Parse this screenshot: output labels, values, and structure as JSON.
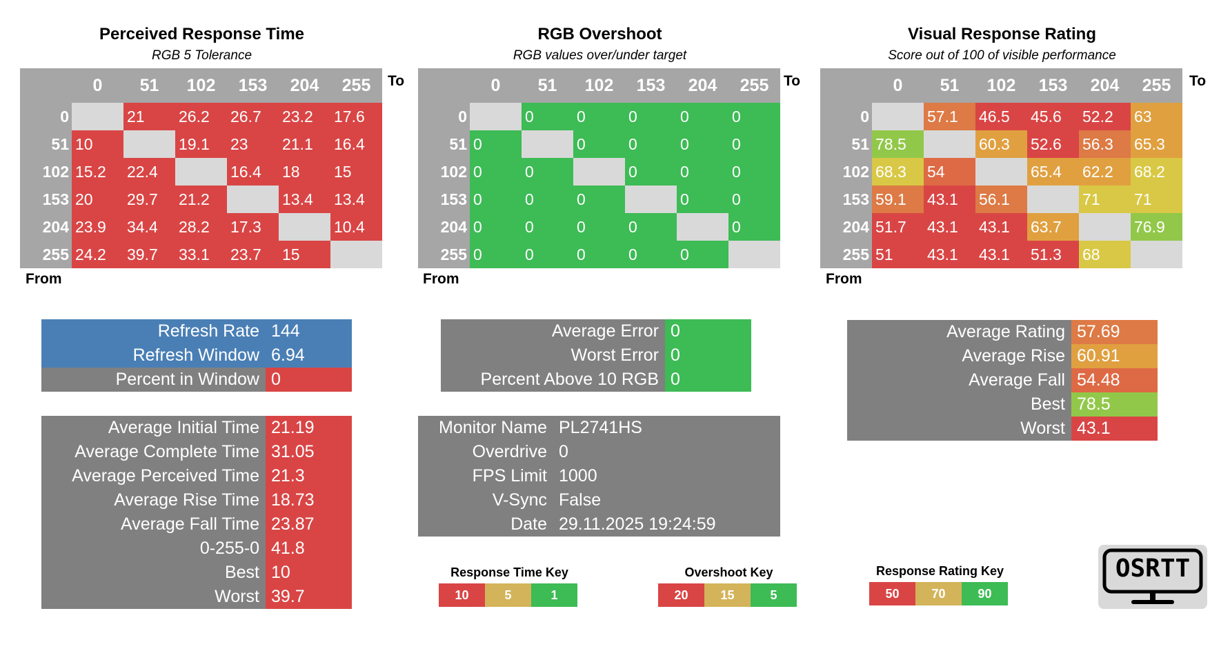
{
  "colors": {
    "red": "#d94545",
    "orange": "#dd7a45",
    "amber": "#e0a040",
    "yellow": "#d8c845",
    "yellowgreen": "#c7d24a",
    "lightgreen": "#92c84a",
    "green": "#3dbb55",
    "gray": "#808080",
    "blue": "#4a7fb5",
    "diag": "#d9d9d9"
  },
  "headers": [
    "0",
    "51",
    "102",
    "153",
    "204",
    "255"
  ],
  "to_label": "To",
  "from_label": "From",
  "prt": {
    "title": "Perceived Response Time",
    "subtitle": "RGB 5 Tolerance",
    "rows": [
      [
        "",
        "21",
        "26.2",
        "26.7",
        "23.2",
        "17.6"
      ],
      [
        "10",
        "",
        "19.1",
        "23",
        "21.1",
        "16.4"
      ],
      [
        "15.2",
        "22.4",
        "",
        "16.4",
        "18",
        "15"
      ],
      [
        "20",
        "29.7",
        "21.2",
        "",
        "13.4",
        "13.4"
      ],
      [
        "23.9",
        "34.4",
        "28.2",
        "17.3",
        "",
        "10.4"
      ],
      [
        "24.2",
        "39.7",
        "33.1",
        "23.7",
        "15",
        ""
      ]
    ]
  },
  "overshoot": {
    "title": "RGB Overshoot",
    "subtitle": "RGB values over/under target",
    "rows": [
      [
        "",
        "0",
        "0",
        "0",
        "0",
        "0"
      ],
      [
        "0",
        "",
        "0",
        "0",
        "0",
        "0"
      ],
      [
        "0",
        "0",
        "",
        "0",
        "0",
        "0"
      ],
      [
        "0",
        "0",
        "0",
        "",
        "0",
        "0"
      ],
      [
        "0",
        "0",
        "0",
        "0",
        "",
        "0"
      ],
      [
        "0",
        "0",
        "0",
        "0",
        "0",
        ""
      ]
    ]
  },
  "vrr": {
    "title": "Visual Response Rating",
    "subtitle": "Score out of 100 of visible performance",
    "rows": [
      [
        "",
        "57.1",
        "46.5",
        "45.6",
        "52.2",
        "63"
      ],
      [
        "78.5",
        "",
        "60.3",
        "52.6",
        "56.3",
        "65.3"
      ],
      [
        "68.3",
        "54",
        "",
        "65.4",
        "62.2",
        "68.2"
      ],
      [
        "59.1",
        "43.1",
        "56.1",
        "",
        "71",
        "71"
      ],
      [
        "51.7",
        "43.1",
        "43.1",
        "63.7",
        "",
        "76.9"
      ],
      [
        "51",
        "43.1",
        "43.1",
        "51.3",
        "68",
        ""
      ]
    ]
  },
  "refresh": [
    {
      "label": "Refresh Rate",
      "value": "144"
    },
    {
      "label": "Refresh Window",
      "value": "6.94"
    },
    {
      "label": "Percent in Window",
      "value": "0"
    }
  ],
  "times": [
    {
      "label": "Average Initial Time",
      "value": "21.19"
    },
    {
      "label": "Average Complete Time",
      "value": "31.05"
    },
    {
      "label": "Average Perceived Time",
      "value": "21.3"
    },
    {
      "label": "Average Rise Time",
      "value": "18.73"
    },
    {
      "label": "Average Fall Time",
      "value": "23.87"
    },
    {
      "label": "0-255-0",
      "value": "41.8"
    },
    {
      "label": "Best",
      "value": "10"
    },
    {
      "label": "Worst",
      "value": "39.7"
    }
  ],
  "errors": [
    {
      "label": "Average Error",
      "value": "0"
    },
    {
      "label": "Worst Error",
      "value": "0"
    },
    {
      "label": "Percent Above 10 RGB",
      "value": "0"
    }
  ],
  "monitor": [
    {
      "label": "Monitor Name",
      "value": "PL2741HS"
    },
    {
      "label": "Overdrive",
      "value": "0"
    },
    {
      "label": "FPS Limit",
      "value": "1000"
    },
    {
      "label": "V-Sync",
      "value": "False"
    },
    {
      "label": "Date",
      "value": "29.11.2025 19:24:59"
    }
  ],
  "ratings": [
    {
      "label": "Average Rating",
      "value": "57.69"
    },
    {
      "label": "Average Rise",
      "value": "60.91"
    },
    {
      "label": "Average Fall",
      "value": "54.48"
    },
    {
      "label": "Best",
      "value": "78.5"
    },
    {
      "label": "Worst",
      "value": "43.1"
    }
  ],
  "keys": {
    "response": {
      "title": "Response Time Key",
      "items": [
        "10",
        "5",
        "1"
      ]
    },
    "overshoot": {
      "title": "Overshoot Key",
      "items": [
        "20",
        "15",
        "5"
      ]
    },
    "rating": {
      "title": "Response Rating Key",
      "items": [
        "50",
        "70",
        "90"
      ]
    }
  },
  "logo": {
    "text": "OSRTT"
  }
}
